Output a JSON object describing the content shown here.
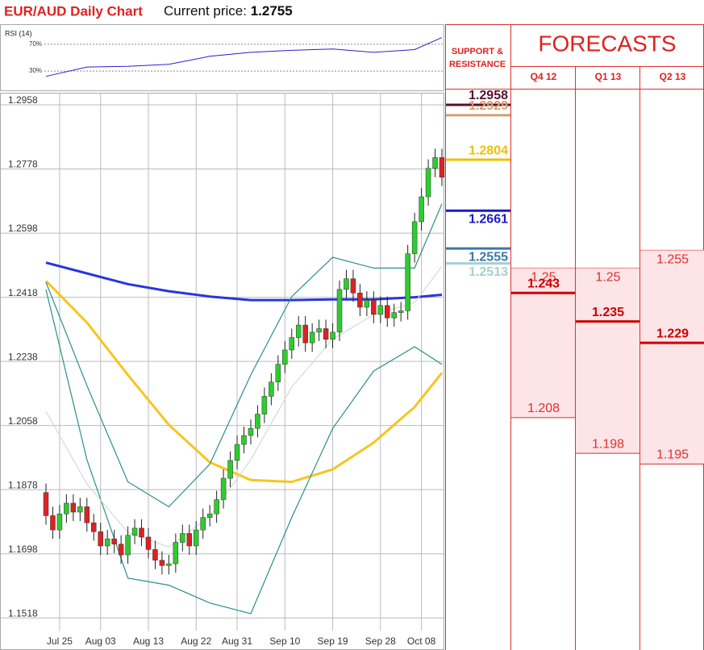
{
  "chart_data": {
    "type": "candlestick",
    "title": "EUR/AUD Daily Chart",
    "current_price_label": "Current price:",
    "current_price": 1.2755,
    "ylim": [
      1.1428,
      1.2992
    ],
    "yticks": [
      1.2958,
      1.2778,
      1.2598,
      1.2418,
      1.2238,
      1.2058,
      1.1878,
      1.1698,
      1.1518
    ],
    "grid": true,
    "xticks": [
      {
        "value": 2,
        "label": "Jul 25"
      },
      {
        "value": 8,
        "label": "Aug 03"
      },
      {
        "value": 15,
        "label": "Aug 13"
      },
      {
        "value": 22,
        "label": "Aug 22"
      },
      {
        "value": 28,
        "label": "Aug 31"
      },
      {
        "value": 35,
        "label": "Sep 10"
      },
      {
        "value": 42,
        "label": "Sep 19"
      },
      {
        "value": 49,
        "label": "Sep 28"
      },
      {
        "value": 55,
        "label": "Oct 08"
      }
    ],
    "up_color": "#2ecc2e",
    "down_color": "#dd2222",
    "candles": [
      [
        1.187,
        1.1895,
        1.178,
        1.1805
      ],
      [
        1.1805,
        1.183,
        1.174,
        1.1765
      ],
      [
        1.1765,
        1.1835,
        1.174,
        1.181
      ],
      [
        1.181,
        1.1865,
        1.1785,
        1.184
      ],
      [
        1.184,
        1.1865,
        1.179,
        1.1815
      ],
      [
        1.1815,
        1.1855,
        1.179,
        1.183
      ],
      [
        1.183,
        1.1855,
        1.176,
        1.1785
      ],
      [
        1.1785,
        1.181,
        1.1735,
        1.176
      ],
      [
        1.176,
        1.1785,
        1.1695,
        1.172
      ],
      [
        1.172,
        1.1765,
        1.1695,
        1.174
      ],
      [
        1.174,
        1.1765,
        1.17,
        1.1725
      ],
      [
        1.1725,
        1.175,
        1.167,
        1.1695
      ],
      [
        1.1695,
        1.1775,
        1.167,
        1.175
      ],
      [
        1.175,
        1.1795,
        1.1725,
        1.177
      ],
      [
        1.177,
        1.1795,
        1.172,
        1.1745
      ],
      [
        1.1745,
        1.177,
        1.1685,
        1.171
      ],
      [
        1.171,
        1.1735,
        1.1655,
        1.168
      ],
      [
        1.168,
        1.1705,
        1.164,
        1.1665
      ],
      [
        1.1665,
        1.1695,
        1.164,
        1.167
      ],
      [
        1.167,
        1.1755,
        1.1645,
        1.173
      ],
      [
        1.173,
        1.178,
        1.1705,
        1.1755
      ],
      [
        1.1755,
        1.178,
        1.1695,
        1.172
      ],
      [
        1.172,
        1.179,
        1.1695,
        1.1765
      ],
      [
        1.1765,
        1.1825,
        1.174,
        1.18
      ],
      [
        1.18,
        1.1835,
        1.1775,
        1.181
      ],
      [
        1.181,
        1.1875,
        1.1785,
        1.185
      ],
      [
        1.185,
        1.1935,
        1.1825,
        1.191
      ],
      [
        1.191,
        1.1985,
        1.1885,
        1.196
      ],
      [
        1.196,
        1.203,
        1.1935,
        1.2005
      ],
      [
        1.2005,
        1.2055,
        1.198,
        1.203
      ],
      [
        1.203,
        1.2075,
        1.2005,
        1.205
      ],
      [
        1.205,
        1.2115,
        1.2025,
        1.209
      ],
      [
        1.209,
        1.2165,
        1.2065,
        1.214
      ],
      [
        1.214,
        1.2205,
        1.2115,
        1.218
      ],
      [
        1.218,
        1.2255,
        1.2155,
        1.223
      ],
      [
        1.223,
        1.2295,
        1.2205,
        1.227
      ],
      [
        1.227,
        1.233,
        1.2245,
        1.2305
      ],
      [
        1.2305,
        1.2365,
        1.228,
        1.234
      ],
      [
        1.234,
        1.2365,
        1.2265,
        1.229
      ],
      [
        1.229,
        1.2345,
        1.2265,
        1.232
      ],
      [
        1.232,
        1.2355,
        1.2295,
        1.233
      ],
      [
        1.233,
        1.2355,
        1.2275,
        1.23
      ],
      [
        1.23,
        1.2345,
        1.2275,
        1.232
      ],
      [
        1.232,
        1.2465,
        1.2295,
        1.244
      ],
      [
        1.244,
        1.2495,
        1.2415,
        1.247
      ],
      [
        1.247,
        1.2495,
        1.2405,
        1.243
      ],
      [
        1.243,
        1.2455,
        1.2365,
        1.239
      ],
      [
        1.239,
        1.2435,
        1.2365,
        1.241
      ],
      [
        1.241,
        1.2435,
        1.2345,
        1.237
      ],
      [
        1.237,
        1.242,
        1.2345,
        1.2395
      ],
      [
        1.2395,
        1.242,
        1.2335,
        1.236
      ],
      [
        1.236,
        1.24,
        1.2335,
        1.2375
      ],
      [
        1.2375,
        1.2405,
        1.235,
        1.238
      ],
      [
        1.238,
        1.2565,
        1.2355,
        1.254
      ],
      [
        1.254,
        1.2655,
        1.2515,
        1.263
      ],
      [
        1.263,
        1.2725,
        1.2605,
        1.27
      ],
      [
        1.27,
        1.2805,
        1.2675,
        1.278
      ],
      [
        1.278,
        1.2835,
        1.2755,
        1.281
      ],
      [
        1.281,
        1.2835,
        1.273,
        1.2755
      ]
    ],
    "line_x": [
      0,
      6,
      12,
      18,
      24,
      30,
      36,
      42,
      48,
      54,
      58
    ],
    "lines": [
      {
        "color": "#2a35dd",
        "values": [
          1.2515,
          1.2485,
          1.2455,
          1.2435,
          1.242,
          1.241,
          1.241,
          1.2412,
          1.2412,
          1.2418,
          1.2425
        ]
      },
      {
        "color": "#f7c520",
        "values": [
          1.2464,
          1.2347,
          1.22,
          1.206,
          1.1955,
          1.1905,
          1.19,
          1.1935,
          1.201,
          1.211,
          1.2206
        ]
      },
      {
        "color": "#2a8f8a",
        "values": [
          1.246,
          1.217,
          1.19,
          1.183,
          1.195,
          1.22,
          1.242,
          1.253,
          1.25,
          1.25,
          1.268
        ]
      },
      {
        "color": "#2a8f8a",
        "values": [
          1.244,
          1.1962,
          1.163,
          1.161,
          1.156,
          1.153,
          1.18,
          1.205,
          1.2211,
          1.2279,
          1.223
        ]
      },
      {
        "color": "#d8d8d8",
        "values": [
          1.2098,
          1.1894,
          1.1758,
          1.1717,
          1.1803,
          1.1962,
          1.2166,
          1.2301,
          1.2369,
          1.2403,
          1.2505
        ]
      }
    ],
    "rsi": {
      "title": "RSI (14)",
      "ylim": [
        0,
        100
      ],
      "yticks": [
        {
          "value": 70,
          "label": "70%"
        },
        {
          "value": 30,
          "label": "30%"
        }
      ],
      "color": "#2222cc",
      "values": [
        22,
        36,
        37,
        40,
        52,
        58,
        61,
        63,
        58,
        62,
        80
      ]
    }
  },
  "support_resistance": {
    "title_lines": [
      "SUPPORT &",
      "RESISTANCE"
    ],
    "levels": [
      {
        "value": 1.2958,
        "color": "#5a1030"
      },
      {
        "value": 1.2929,
        "color": "#d4a070"
      },
      {
        "value": 1.2804,
        "color": "#f0c000"
      },
      {
        "value": 1.2661,
        "color": "#1a1acc"
      },
      {
        "value": 1.2555,
        "color": "#3a78a8"
      },
      {
        "value": 1.2513,
        "color": "#a8d0d0"
      }
    ]
  },
  "forecasts": {
    "title": "FORECASTS",
    "columns": [
      {
        "label": "Q4 12",
        "high": 1.25,
        "low": 1.208,
        "forecast": 1.243
      },
      {
        "label": "Q1 13",
        "high": 1.25,
        "low": 1.198,
        "forecast": 1.235
      },
      {
        "label": "Q2 13",
        "high": 1.255,
        "low": 1.195,
        "forecast": 1.229
      }
    ]
  }
}
